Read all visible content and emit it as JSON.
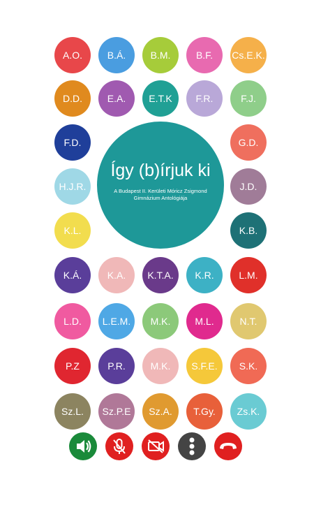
{
  "cover": {
    "title": "Így (b)írjuk ki",
    "subtitle": "A Budapest II. Kerületi Móricz Zsigmond Gimnázium Antológiája",
    "color": "#1e9898"
  },
  "people": [
    {
      "initials": "A.O.",
      "color": "#e8474a"
    },
    {
      "initials": "B.Á.",
      "color": "#4a9de0"
    },
    {
      "initials": "B.M.",
      "color": "#a6cc3a"
    },
    {
      "initials": "B.F.",
      "color": "#e86ab0"
    },
    {
      "initials": "Cs.E.K.",
      "color": "#f5b04a"
    },
    {
      "initials": "D.D.",
      "color": "#e08a1e"
    },
    {
      "initials": "E.A.",
      "color": "#a05ab0"
    },
    {
      "initials": "E.T.K",
      "color": "#20a095"
    },
    {
      "initials": "F.R.",
      "color": "#b9a8d8"
    },
    {
      "initials": "F.J.",
      "color": "#8fce8a"
    },
    {
      "initials": "F.D.",
      "color": "#1f3f9a"
    },
    {
      "initials": "G.D.",
      "color": "#ef6f5e"
    },
    {
      "initials": "H.J.R.",
      "color": "#9fd8e6"
    },
    {
      "initials": "J.D.",
      "color": "#a07c98"
    },
    {
      "initials": "K.L.",
      "color": "#f2dd4e"
    },
    {
      "initials": "K.B.",
      "color": "#1e7176"
    },
    {
      "initials": "K.Á.",
      "color": "#5a3e9a"
    },
    {
      "initials": "K.A.",
      "color": "#f0b8b8"
    },
    {
      "initials": "K.T.A.",
      "color": "#6a3a8a"
    },
    {
      "initials": "K.R.",
      "color": "#3db1c5"
    },
    {
      "initials": "L.M.",
      "color": "#e0302a"
    },
    {
      "initials": "L.D.",
      "color": "#f05aa0"
    },
    {
      "initials": "L.E.M.",
      "color": "#4fa8e5"
    },
    {
      "initials": "M.K.",
      "color": "#8cc97a"
    },
    {
      "initials": "M.L.",
      "color": "#e02a8e"
    },
    {
      "initials": "N.T.",
      "color": "#e0c870"
    },
    {
      "initials": "P.Z",
      "color": "#e02630"
    },
    {
      "initials": "P.R.",
      "color": "#5a3e9a"
    },
    {
      "initials": "M.K.",
      "color": "#f0b8b8"
    },
    {
      "initials": "S.F.E.",
      "color": "#f5c83a"
    },
    {
      "initials": "S.K.",
      "color": "#f06a55"
    },
    {
      "initials": "Sz.L.",
      "color": "#8c8460"
    },
    {
      "initials": "Sz.P.E",
      "color": "#b07898"
    },
    {
      "initials": "Sz.A.",
      "color": "#e09a30"
    },
    {
      "initials": "T.Gy.",
      "color": "#e8603a"
    },
    {
      "initials": "Zs.K.",
      "color": "#6acbd3"
    }
  ]
}
